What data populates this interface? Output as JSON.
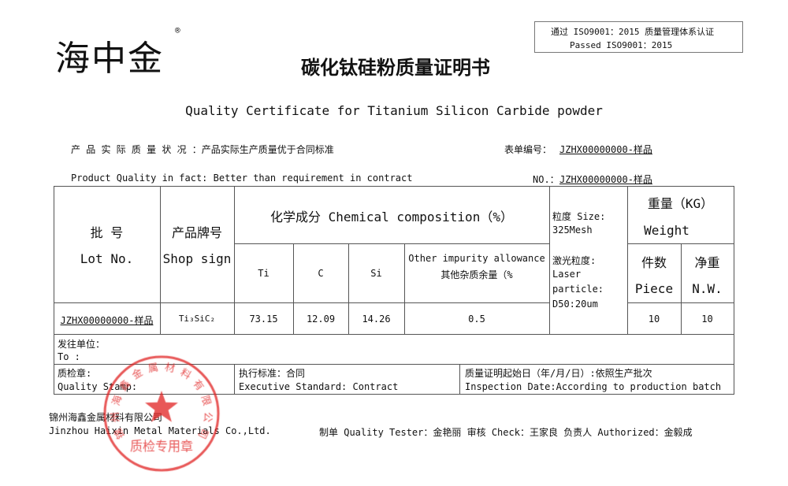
{
  "logo": {
    "text": "海中金",
    "registered": "®"
  },
  "title": "碳化钛硅粉质量证明书",
  "iso": {
    "line1": "通过 ISO9001：2015 质量管理体系认证",
    "line2": "Passed  ISO9001：2015"
  },
  "title_en": "Quality Certificate for Titanium Silicon Carbide powder",
  "quality_cn": "产 品 实 际 质 量 状 况 ：产品实际生产质量优于合同标准",
  "form_no_label_cn": "表单编号：",
  "form_no": "JZHX00000000-样品",
  "quality_en": "Product Quality in fact:  Better than requirement in contract",
  "no_label_en": "NO.：",
  "table": {
    "lot_cn": "批    号",
    "lot_en": "Lot No.",
    "shop_cn": "产品牌号",
    "shop_en": "Shop sign",
    "chem": "化学成分 Chemical composition（%）",
    "ti": "Ti",
    "c": "C",
    "si": "Si",
    "other_en": "Other impurity allowance",
    "other_cn": "其他杂质余量（%",
    "size1": "粒度 Size:",
    "size2": "325Mesh",
    "size3": "激光粒度:",
    "size4": "Laser",
    "size5": "particle:",
    "size6": "D50:20um",
    "weight_cn": "重量（KG）",
    "weight_en": "Weight",
    "piece_cn": "件数",
    "piece_en": "Piece",
    "nw_cn": "净重",
    "nw_en": "N.W.",
    "row": {
      "lot": "JZHX00000000-样品",
      "shop": "Ti₃SiC₂",
      "ti": "73.15",
      "c": "12.09",
      "si": "14.26",
      "other": "0.5",
      "piece": "10",
      "nw": "10"
    },
    "to_cn": "发往单位：",
    "to_en": "To :",
    "stamp_cn": "质检章:",
    "stamp_en": "Quality Stamp:",
    "std_cn": "执行标准：合同",
    "std_en": "Executive Standard: Contract",
    "date_cn": "质量证明起始日（年/月/日）:依照生产批次",
    "date_en": "Inspection Date:According to production batch"
  },
  "company_cn": "锦州海鑫金属材料有限公司",
  "company_en": "Jinzhou Haixin Metal Materials Co.,Ltd.",
  "signatures": "制单 Quality Tester：金艳丽  审核 Check：王家良   负责人 Authorized：金毅成",
  "seal": {
    "ring": "锦州海鑫金属材料有限公司",
    "bottom": "质检专用章",
    "color": "#e02020"
  }
}
